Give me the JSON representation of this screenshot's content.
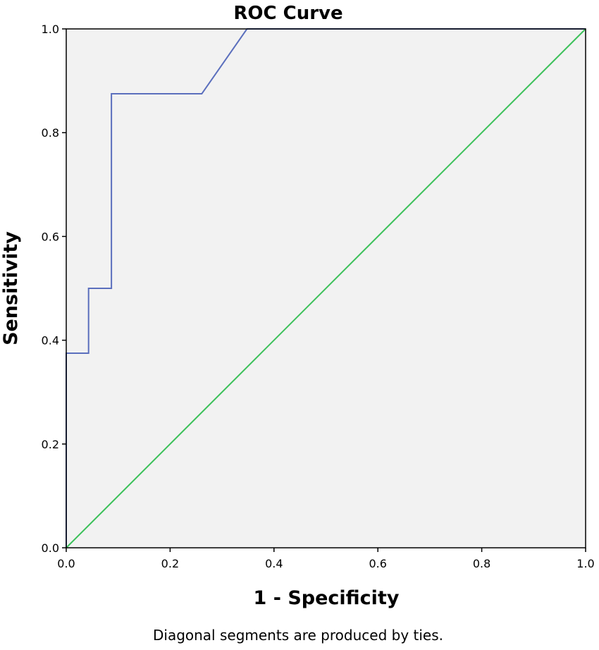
{
  "chart_data": {
    "type": "line",
    "title": "ROC Curve",
    "xlabel": "1 - Specificity",
    "ylabel": "Sensitivity",
    "footnote": "Diagonal segments are produced by ties.",
    "xlim": [
      0,
      1
    ],
    "ylim": [
      0,
      1
    ],
    "xticks": [
      0.0,
      0.2,
      0.4,
      0.6,
      0.8,
      1.0
    ],
    "yticks": [
      0.0,
      0.2,
      0.4,
      0.6,
      0.8,
      1.0
    ],
    "xtick_labels": [
      "0.0",
      "0.2",
      "0.4",
      "0.6",
      "0.8",
      "1.0"
    ],
    "ytick_labels": [
      "0.0",
      "0.2",
      "0.4",
      "0.6",
      "0.8",
      "1.0"
    ],
    "grid": false,
    "background_color": "#f2f2f2",
    "series": [
      {
        "color": "#5b6fbd",
        "x": [
          0.0,
          0.0,
          0.043,
          0.043,
          0.087,
          0.087,
          0.261,
          0.348,
          1.0
        ],
        "y": [
          0.0,
          0.375,
          0.375,
          0.5,
          0.5,
          0.875,
          0.875,
          1.0,
          1.0
        ]
      },
      {
        "color": "#3cc15a",
        "x": [
          0.0,
          1.0
        ],
        "y": [
          0.0,
          1.0
        ]
      }
    ]
  }
}
